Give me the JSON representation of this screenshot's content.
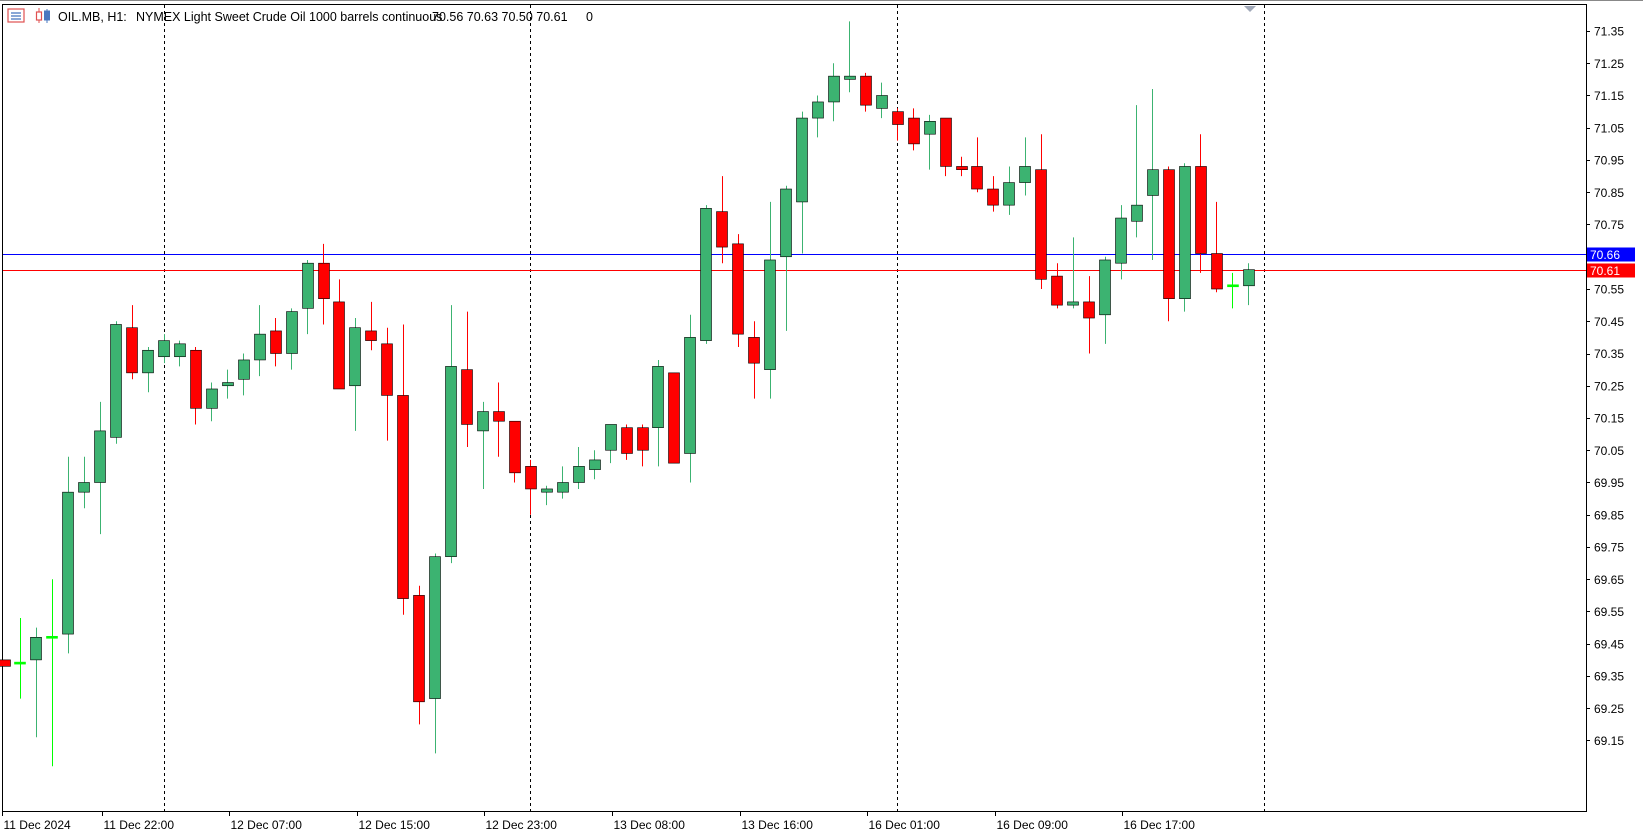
{
  "header": {
    "symbol": "OIL.MB, H1:",
    "description": "NYMEX Light Sweet Crude Oil 1000 barrels continuous",
    "ohlc": "70.56 70.63 70.50 70.61",
    "extra": "0",
    "icons": [
      "chart-properties-icon",
      "candles-icon"
    ]
  },
  "colors": {
    "bull": "#3cb371",
    "bear": "#ff0000",
    "forming": "#00ff00",
    "wick": "#000000",
    "ask_line": "#0000ff",
    "bid_line": "#ff0000",
    "grid": "#000000",
    "axis_text": "#000000"
  },
  "price_labels": {
    "ask": "70.66",
    "bid": "70.61"
  },
  "chart_data": {
    "type": "candlestick",
    "title": "",
    "timeframe": "H1",
    "ylim": [
      69.07,
      71.4
    ],
    "y_ticks": [
      "71.35",
      "71.25",
      "71.15",
      "71.05",
      "70.95",
      "70.85",
      "70.75",
      "70.65",
      "70.55",
      "70.45",
      "70.35",
      "70.25",
      "70.15",
      "70.05",
      "69.95",
      "69.85",
      "69.75",
      "69.65",
      "69.55",
      "69.45",
      "69.35",
      "69.25",
      "69.15"
    ],
    "x_ticks": [
      {
        "label": "11 Dec 2024",
        "index": 0
      },
      {
        "label": "11 Dec 22:00",
        "index": 8
      },
      {
        "label": "12 Dec 07:00",
        "index": 16
      },
      {
        "label": "12 Dec 15:00",
        "index": 24
      },
      {
        "label": "12 Dec 23:00",
        "index": 32
      },
      {
        "label": "13 Dec 08:00",
        "index": 40
      },
      {
        "label": "13 Dec 16:00",
        "index": 48
      },
      {
        "label": "16 Dec 01:00",
        "index": 56
      },
      {
        "label": "16 Dec 09:00",
        "index": 64
      },
      {
        "label": "16 Dec 17:00",
        "index": 72
      }
    ],
    "separators": [
      10,
      33,
      56,
      79
    ],
    "ask": 70.66,
    "bid": 70.61,
    "grid": false,
    "candles": [
      {
        "o": 69.4,
        "h": 69.4,
        "l": 69.38,
        "c": 69.38
      },
      {
        "o": 69.39,
        "h": 69.53,
        "l": 69.28,
        "c": 69.39
      },
      {
        "o": 69.4,
        "h": 69.5,
        "l": 69.16,
        "c": 69.47
      },
      {
        "o": 69.47,
        "h": 69.65,
        "l": 69.07,
        "c": 69.47
      },
      {
        "o": 69.48,
        "h": 70.03,
        "l": 69.42,
        "c": 69.92
      },
      {
        "o": 69.92,
        "h": 70.03,
        "l": 69.87,
        "c": 69.95
      },
      {
        "o": 69.95,
        "h": 70.2,
        "l": 69.79,
        "c": 70.11
      },
      {
        "o": 70.09,
        "h": 70.45,
        "l": 70.07,
        "c": 70.44
      },
      {
        "o": 70.43,
        "h": 70.5,
        "l": 70.27,
        "c": 70.29
      },
      {
        "o": 70.29,
        "h": 70.37,
        "l": 70.23,
        "c": 70.36
      },
      {
        "o": 70.34,
        "h": 70.41,
        "l": 70.32,
        "c": 70.39
      },
      {
        "o": 70.34,
        "h": 70.39,
        "l": 70.31,
        "c": 70.38
      },
      {
        "o": 70.36,
        "h": 70.37,
        "l": 70.13,
        "c": 70.18
      },
      {
        "o": 70.18,
        "h": 70.26,
        "l": 70.14,
        "c": 70.24
      },
      {
        "o": 70.25,
        "h": 70.3,
        "l": 70.21,
        "c": 70.26
      },
      {
        "o": 70.27,
        "h": 70.35,
        "l": 70.22,
        "c": 70.33
      },
      {
        "o": 70.33,
        "h": 70.5,
        "l": 70.28,
        "c": 70.41
      },
      {
        "o": 70.42,
        "h": 70.46,
        "l": 70.31,
        "c": 70.35
      },
      {
        "o": 70.35,
        "h": 70.49,
        "l": 70.3,
        "c": 70.48
      },
      {
        "o": 70.49,
        "h": 70.64,
        "l": 70.41,
        "c": 70.63
      },
      {
        "o": 70.63,
        "h": 70.69,
        "l": 70.44,
        "c": 70.52
      },
      {
        "o": 70.51,
        "h": 70.58,
        "l": 70.24,
        "c": 70.24
      },
      {
        "o": 70.25,
        "h": 70.46,
        "l": 70.11,
        "c": 70.43
      },
      {
        "o": 70.42,
        "h": 70.51,
        "l": 70.36,
        "c": 70.39
      },
      {
        "o": 70.38,
        "h": 70.43,
        "l": 70.08,
        "c": 70.22
      },
      {
        "o": 70.22,
        "h": 70.44,
        "l": 69.54,
        "c": 69.59
      },
      {
        "o": 69.6,
        "h": 69.63,
        "l": 69.2,
        "c": 69.27
      },
      {
        "o": 69.28,
        "h": 69.73,
        "l": 69.11,
        "c": 69.72
      },
      {
        "o": 69.72,
        "h": 70.5,
        "l": 69.7,
        "c": 70.31
      },
      {
        "o": 70.3,
        "h": 70.48,
        "l": 70.06,
        "c": 70.13
      },
      {
        "o": 70.11,
        "h": 70.2,
        "l": 69.93,
        "c": 70.17
      },
      {
        "o": 70.17,
        "h": 70.26,
        "l": 70.03,
        "c": 70.14
      },
      {
        "o": 70.14,
        "h": 70.14,
        "l": 69.95,
        "c": 69.98
      },
      {
        "o": 70.0,
        "h": 70.02,
        "l": 69.85,
        "c": 69.93
      },
      {
        "o": 69.92,
        "h": 69.94,
        "l": 69.88,
        "c": 69.93
      },
      {
        "o": 69.92,
        "h": 70.0,
        "l": 69.9,
        "c": 69.95
      },
      {
        "o": 69.95,
        "h": 70.06,
        "l": 69.93,
        "c": 70.0
      },
      {
        "o": 69.99,
        "h": 70.05,
        "l": 69.96,
        "c": 70.02
      },
      {
        "o": 70.05,
        "h": 70.13,
        "l": 70.01,
        "c": 70.13
      },
      {
        "o": 70.12,
        "h": 70.13,
        "l": 70.02,
        "c": 70.04
      },
      {
        "o": 70.12,
        "h": 70.13,
        "l": 70.0,
        "c": 70.05
      },
      {
        "o": 70.12,
        "h": 70.33,
        "l": 70.0,
        "c": 70.31
      },
      {
        "o": 70.29,
        "h": 70.29,
        "l": 70.01,
        "c": 70.01
      },
      {
        "o": 70.04,
        "h": 70.47,
        "l": 69.95,
        "c": 70.4
      },
      {
        "o": 70.39,
        "h": 70.81,
        "l": 70.38,
        "c": 70.8
      },
      {
        "o": 70.79,
        "h": 70.9,
        "l": 70.63,
        "c": 70.68
      },
      {
        "o": 70.69,
        "h": 70.72,
        "l": 70.37,
        "c": 70.41
      },
      {
        "o": 70.4,
        "h": 70.45,
        "l": 70.21,
        "c": 70.32
      },
      {
        "o": 70.3,
        "h": 70.82,
        "l": 70.21,
        "c": 70.64
      },
      {
        "o": 70.65,
        "h": 70.87,
        "l": 70.42,
        "c": 70.86
      },
      {
        "o": 70.82,
        "h": 71.1,
        "l": 70.66,
        "c": 71.08
      },
      {
        "o": 71.08,
        "h": 71.15,
        "l": 71.02,
        "c": 71.13
      },
      {
        "o": 71.13,
        "h": 71.25,
        "l": 71.07,
        "c": 71.21
      },
      {
        "o": 71.2,
        "h": 71.38,
        "l": 71.16,
        "c": 71.21
      },
      {
        "o": 71.21,
        "h": 71.22,
        "l": 71.1,
        "c": 71.12
      },
      {
        "o": 71.11,
        "h": 71.19,
        "l": 71.08,
        "c": 71.15
      },
      {
        "o": 71.1,
        "h": 71.11,
        "l": 71.01,
        "c": 71.06
      },
      {
        "o": 71.08,
        "h": 71.11,
        "l": 70.98,
        "c": 71.0
      },
      {
        "o": 71.03,
        "h": 71.09,
        "l": 70.92,
        "c": 71.07
      },
      {
        "o": 71.08,
        "h": 71.08,
        "l": 70.9,
        "c": 70.93
      },
      {
        "o": 70.93,
        "h": 70.96,
        "l": 70.9,
        "c": 70.92
      },
      {
        "o": 70.93,
        "h": 71.02,
        "l": 70.85,
        "c": 70.86
      },
      {
        "o": 70.86,
        "h": 70.9,
        "l": 70.79,
        "c": 70.81
      },
      {
        "o": 70.81,
        "h": 70.93,
        "l": 70.78,
        "c": 70.88
      },
      {
        "o": 70.88,
        "h": 71.02,
        "l": 70.84,
        "c": 70.93
      },
      {
        "o": 70.92,
        "h": 71.03,
        "l": 70.55,
        "c": 70.58
      },
      {
        "o": 70.59,
        "h": 70.63,
        "l": 70.49,
        "c": 70.5
      },
      {
        "o": 70.5,
        "h": 70.71,
        "l": 70.49,
        "c": 70.51
      },
      {
        "o": 70.51,
        "h": 70.59,
        "l": 70.35,
        "c": 70.46
      },
      {
        "o": 70.47,
        "h": 70.65,
        "l": 70.38,
        "c": 70.64
      },
      {
        "o": 70.63,
        "h": 70.81,
        "l": 70.58,
        "c": 70.77
      },
      {
        "o": 70.76,
        "h": 71.12,
        "l": 70.71,
        "c": 70.81
      },
      {
        "o": 70.84,
        "h": 71.17,
        "l": 70.64,
        "c": 70.92
      },
      {
        "o": 70.92,
        "h": 70.93,
        "l": 70.45,
        "c": 70.52
      },
      {
        "o": 70.52,
        "h": 70.94,
        "l": 70.48,
        "c": 70.93
      },
      {
        "o": 70.93,
        "h": 71.03,
        "l": 70.6,
        "c": 70.66
      },
      {
        "o": 70.66,
        "h": 70.82,
        "l": 70.54,
        "c": 70.55
      },
      {
        "o": 70.56,
        "h": 70.6,
        "l": 70.49,
        "c": 70.56
      },
      {
        "o": 70.56,
        "h": 70.63,
        "l": 70.5,
        "c": 70.61
      }
    ]
  }
}
